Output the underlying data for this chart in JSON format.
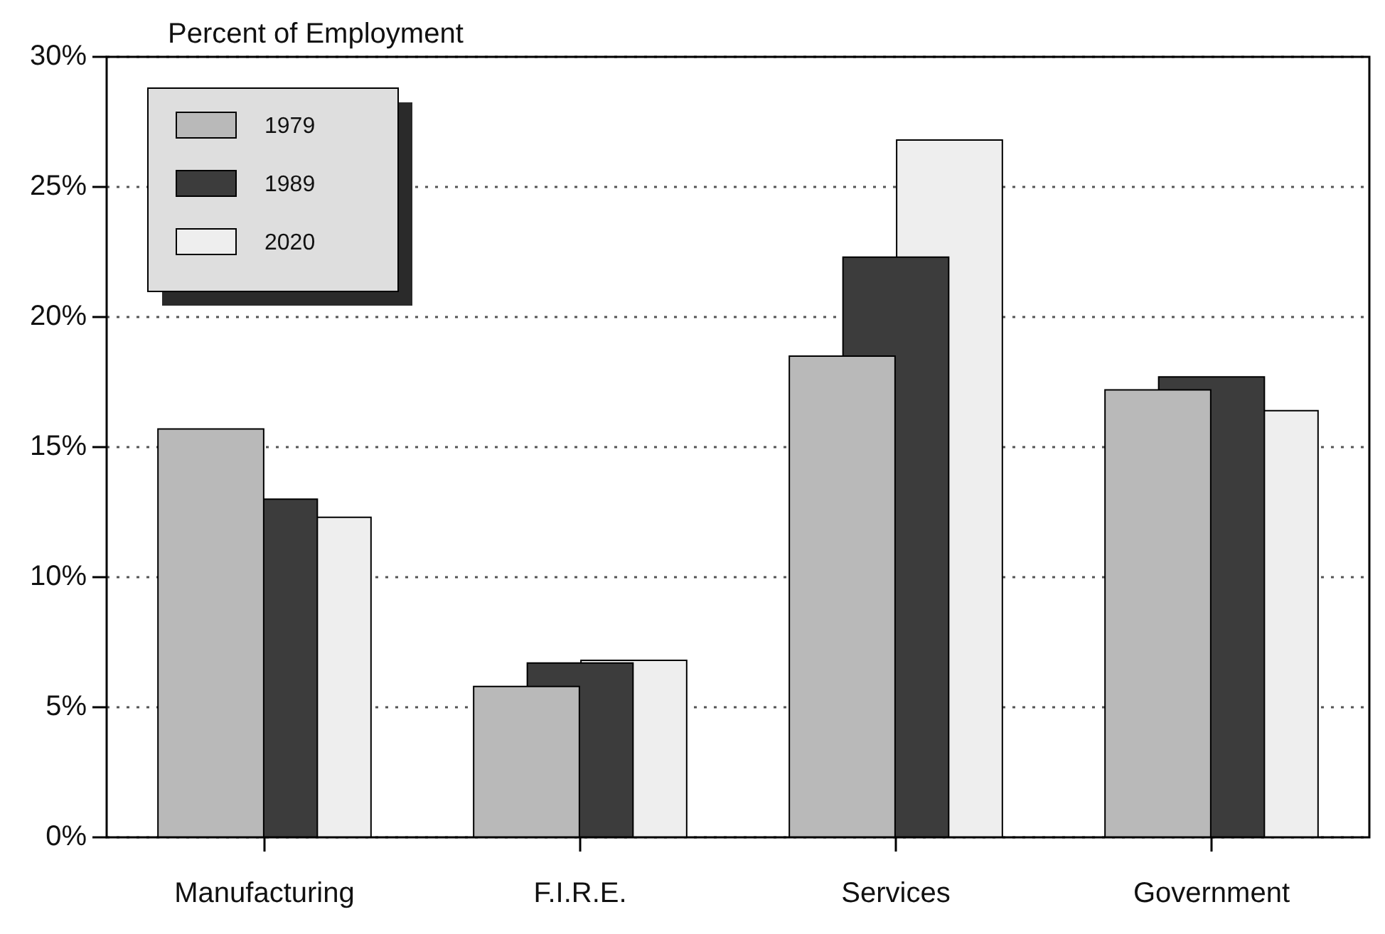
{
  "chart_data": {
    "type": "bar",
    "ylabel": "Percent of Employment",
    "categories": [
      "Manufacturing",
      "F.I.R.E.",
      "Services",
      "Government"
    ],
    "series": [
      {
        "name": "1979",
        "color": "#b9b9b9",
        "values": [
          15.7,
          5.8,
          18.5,
          17.2
        ]
      },
      {
        "name": "1989",
        "color": "#3c3c3c",
        "values": [
          13,
          6.7,
          22.3,
          17.7
        ]
      },
      {
        "name": "2020",
        "color": "#eeeeee",
        "values": [
          12.3,
          6.8,
          26.8,
          16.4
        ]
      }
    ],
    "ylim": [
      0,
      30
    ],
    "yticks": [
      {
        "value": 0,
        "label": "0%"
      },
      {
        "value": 5,
        "label": "5%"
      },
      {
        "value": 10,
        "label": "10%"
      },
      {
        "value": 15,
        "label": "15%"
      },
      {
        "value": 20,
        "label": "20%"
      },
      {
        "value": 25,
        "label": "25%"
      },
      {
        "value": 30,
        "label": "30%"
      }
    ],
    "grid": "y",
    "legend": "top left"
  }
}
